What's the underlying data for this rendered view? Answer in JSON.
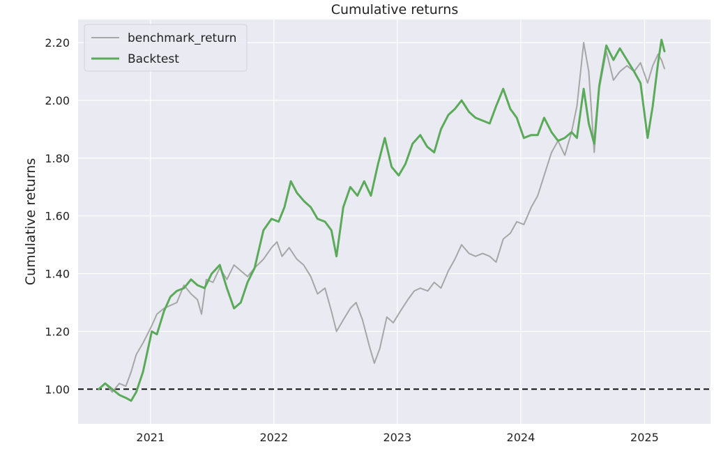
{
  "chart_data": {
    "type": "line",
    "title": "Cumulative returns",
    "xlabel": "",
    "ylabel": "Cumulative returns",
    "ylim": [
      0.88,
      2.28
    ],
    "xlim": [
      "2020-06-01",
      "2025-07-15"
    ],
    "grid": true,
    "legend_position": "top-left",
    "y_ticks": [
      "1.00",
      "1.20",
      "1.40",
      "1.60",
      "1.80",
      "2.00",
      "2.20"
    ],
    "x_ticks": [
      "2021",
      "2022",
      "2023",
      "2024",
      "2025"
    ],
    "reference_line": {
      "y": 1.0,
      "style": "dashed",
      "color": "#111111"
    },
    "colors": {
      "background": "#eaeaf2",
      "grid": "#ffffff",
      "benchmark": "#a6a6a6",
      "backtest": "#5aaa5a"
    },
    "series": [
      {
        "name": "benchmark_return",
        "points": [
          [
            "2020-08-01",
            1.0
          ],
          [
            "2020-08-20",
            1.02
          ],
          [
            "2020-09-10",
            0.99
          ],
          [
            "2020-10-01",
            1.02
          ],
          [
            "2020-10-20",
            1.01
          ],
          [
            "2020-11-05",
            1.06
          ],
          [
            "2020-11-20",
            1.12
          ],
          [
            "2020-12-10",
            1.16
          ],
          [
            "2021-01-05",
            1.22
          ],
          [
            "2021-01-20",
            1.26
          ],
          [
            "2021-02-10",
            1.28
          ],
          [
            "2021-03-01",
            1.29
          ],
          [
            "2021-03-20",
            1.3
          ],
          [
            "2021-04-10",
            1.36
          ],
          [
            "2021-05-01",
            1.33
          ],
          [
            "2021-05-20",
            1.31
          ],
          [
            "2021-06-01",
            1.26
          ],
          [
            "2021-06-15",
            1.38
          ],
          [
            "2021-07-05",
            1.37
          ],
          [
            "2021-07-25",
            1.42
          ],
          [
            "2021-08-15",
            1.38
          ],
          [
            "2021-09-05",
            1.43
          ],
          [
            "2021-09-25",
            1.41
          ],
          [
            "2021-10-15",
            1.39
          ],
          [
            "2021-11-05",
            1.42
          ],
          [
            "2021-12-01",
            1.45
          ],
          [
            "2021-12-25",
            1.49
          ],
          [
            "2022-01-10",
            1.51
          ],
          [
            "2022-01-25",
            1.46
          ],
          [
            "2022-02-15",
            1.49
          ],
          [
            "2022-03-10",
            1.45
          ],
          [
            "2022-03-30",
            1.43
          ],
          [
            "2022-04-20",
            1.39
          ],
          [
            "2022-05-10",
            1.33
          ],
          [
            "2022-06-01",
            1.35
          ],
          [
            "2022-06-20",
            1.27
          ],
          [
            "2022-07-05",
            1.2
          ],
          [
            "2022-07-25",
            1.24
          ],
          [
            "2022-08-15",
            1.28
          ],
          [
            "2022-09-01",
            1.3
          ],
          [
            "2022-09-20",
            1.24
          ],
          [
            "2022-10-10",
            1.15
          ],
          [
            "2022-10-25",
            1.09
          ],
          [
            "2022-11-10",
            1.14
          ],
          [
            "2022-12-01",
            1.25
          ],
          [
            "2022-12-20",
            1.23
          ],
          [
            "2023-01-10",
            1.27
          ],
          [
            "2023-02-01",
            1.31
          ],
          [
            "2023-02-20",
            1.34
          ],
          [
            "2023-03-10",
            1.35
          ],
          [
            "2023-04-01",
            1.34
          ],
          [
            "2023-04-20",
            1.37
          ],
          [
            "2023-05-10",
            1.35
          ],
          [
            "2023-06-01",
            1.41
          ],
          [
            "2023-06-20",
            1.45
          ],
          [
            "2023-07-10",
            1.5
          ],
          [
            "2023-08-01",
            1.47
          ],
          [
            "2023-08-20",
            1.46
          ],
          [
            "2023-09-10",
            1.47
          ],
          [
            "2023-10-01",
            1.46
          ],
          [
            "2023-10-20",
            1.44
          ],
          [
            "2023-11-10",
            1.52
          ],
          [
            "2023-12-01",
            1.54
          ],
          [
            "2023-12-20",
            1.58
          ],
          [
            "2024-01-10",
            1.57
          ],
          [
            "2024-02-01",
            1.63
          ],
          [
            "2024-02-20",
            1.67
          ],
          [
            "2024-03-10",
            1.74
          ],
          [
            "2024-04-01",
            1.82
          ],
          [
            "2024-04-20",
            1.86
          ],
          [
            "2024-05-10",
            1.81
          ],
          [
            "2024-05-30",
            1.89
          ],
          [
            "2024-06-15",
            1.98
          ],
          [
            "2024-07-05",
            2.2
          ],
          [
            "2024-07-20",
            2.1
          ],
          [
            "2024-08-05",
            1.82
          ],
          [
            "2024-08-20",
            2.04
          ],
          [
            "2024-09-10",
            2.17
          ],
          [
            "2024-10-01",
            2.07
          ],
          [
            "2024-10-20",
            2.1
          ],
          [
            "2024-11-10",
            2.12
          ],
          [
            "2024-12-01",
            2.1
          ],
          [
            "2024-12-20",
            2.13
          ],
          [
            "2025-01-10",
            2.06
          ],
          [
            "2025-01-25",
            2.12
          ],
          [
            "2025-02-10",
            2.16
          ],
          [
            "2025-02-20",
            2.14
          ],
          [
            "2025-03-01",
            2.11
          ]
        ]
      },
      {
        "name": "Backtest",
        "points": [
          [
            "2020-08-01",
            1.0
          ],
          [
            "2020-08-20",
            1.02
          ],
          [
            "2020-09-10",
            1.0
          ],
          [
            "2020-10-01",
            0.98
          ],
          [
            "2020-10-20",
            0.97
          ],
          [
            "2020-11-05",
            0.96
          ],
          [
            "2020-11-20",
            0.99
          ],
          [
            "2020-12-10",
            1.06
          ],
          [
            "2021-01-05",
            1.2
          ],
          [
            "2021-01-20",
            1.19
          ],
          [
            "2021-02-10",
            1.27
          ],
          [
            "2021-03-01",
            1.32
          ],
          [
            "2021-03-20",
            1.34
          ],
          [
            "2021-04-10",
            1.35
          ],
          [
            "2021-05-01",
            1.38
          ],
          [
            "2021-05-20",
            1.36
          ],
          [
            "2021-06-10",
            1.35
          ],
          [
            "2021-07-01",
            1.4
          ],
          [
            "2021-07-25",
            1.43
          ],
          [
            "2021-08-15",
            1.35
          ],
          [
            "2021-09-05",
            1.28
          ],
          [
            "2021-09-25",
            1.3
          ],
          [
            "2021-10-15",
            1.37
          ],
          [
            "2021-11-05",
            1.42
          ],
          [
            "2021-12-01",
            1.55
          ],
          [
            "2021-12-25",
            1.59
          ],
          [
            "2022-01-15",
            1.58
          ],
          [
            "2022-02-01",
            1.63
          ],
          [
            "2022-02-20",
            1.72
          ],
          [
            "2022-03-10",
            1.68
          ],
          [
            "2022-04-01",
            1.65
          ],
          [
            "2022-04-20",
            1.63
          ],
          [
            "2022-05-10",
            1.59
          ],
          [
            "2022-06-01",
            1.58
          ],
          [
            "2022-06-20",
            1.55
          ],
          [
            "2022-07-05",
            1.46
          ],
          [
            "2022-07-25",
            1.63
          ],
          [
            "2022-08-15",
            1.7
          ],
          [
            "2022-09-05",
            1.67
          ],
          [
            "2022-09-25",
            1.72
          ],
          [
            "2022-10-15",
            1.67
          ],
          [
            "2022-11-05",
            1.78
          ],
          [
            "2022-11-25",
            1.87
          ],
          [
            "2022-12-15",
            1.77
          ],
          [
            "2023-01-05",
            1.74
          ],
          [
            "2023-01-25",
            1.78
          ],
          [
            "2023-02-15",
            1.85
          ],
          [
            "2023-03-10",
            1.88
          ],
          [
            "2023-03-30",
            1.84
          ],
          [
            "2023-04-20",
            1.82
          ],
          [
            "2023-05-10",
            1.9
          ],
          [
            "2023-06-01",
            1.95
          ],
          [
            "2023-06-20",
            1.97
          ],
          [
            "2023-07-10",
            2.0
          ],
          [
            "2023-08-01",
            1.96
          ],
          [
            "2023-08-20",
            1.94
          ],
          [
            "2023-09-10",
            1.93
          ],
          [
            "2023-10-01",
            1.92
          ],
          [
            "2023-10-20",
            1.98
          ],
          [
            "2023-11-10",
            2.04
          ],
          [
            "2023-12-01",
            1.97
          ],
          [
            "2023-12-20",
            1.94
          ],
          [
            "2024-01-10",
            1.87
          ],
          [
            "2024-02-01",
            1.88
          ],
          [
            "2024-02-20",
            1.88
          ],
          [
            "2024-03-10",
            1.94
          ],
          [
            "2024-04-01",
            1.89
          ],
          [
            "2024-04-20",
            1.86
          ],
          [
            "2024-05-10",
            1.87
          ],
          [
            "2024-05-30",
            1.89
          ],
          [
            "2024-06-15",
            1.87
          ],
          [
            "2024-07-05",
            2.04
          ],
          [
            "2024-07-20",
            1.92
          ],
          [
            "2024-08-05",
            1.85
          ],
          [
            "2024-08-20",
            2.05
          ],
          [
            "2024-09-10",
            2.19
          ],
          [
            "2024-10-01",
            2.14
          ],
          [
            "2024-10-20",
            2.18
          ],
          [
            "2024-11-10",
            2.14
          ],
          [
            "2024-12-01",
            2.1
          ],
          [
            "2024-12-20",
            2.06
          ],
          [
            "2025-01-10",
            1.87
          ],
          [
            "2025-01-25",
            1.98
          ],
          [
            "2025-02-10",
            2.13
          ],
          [
            "2025-02-20",
            2.21
          ],
          [
            "2025-03-01",
            2.17
          ]
        ]
      }
    ]
  }
}
